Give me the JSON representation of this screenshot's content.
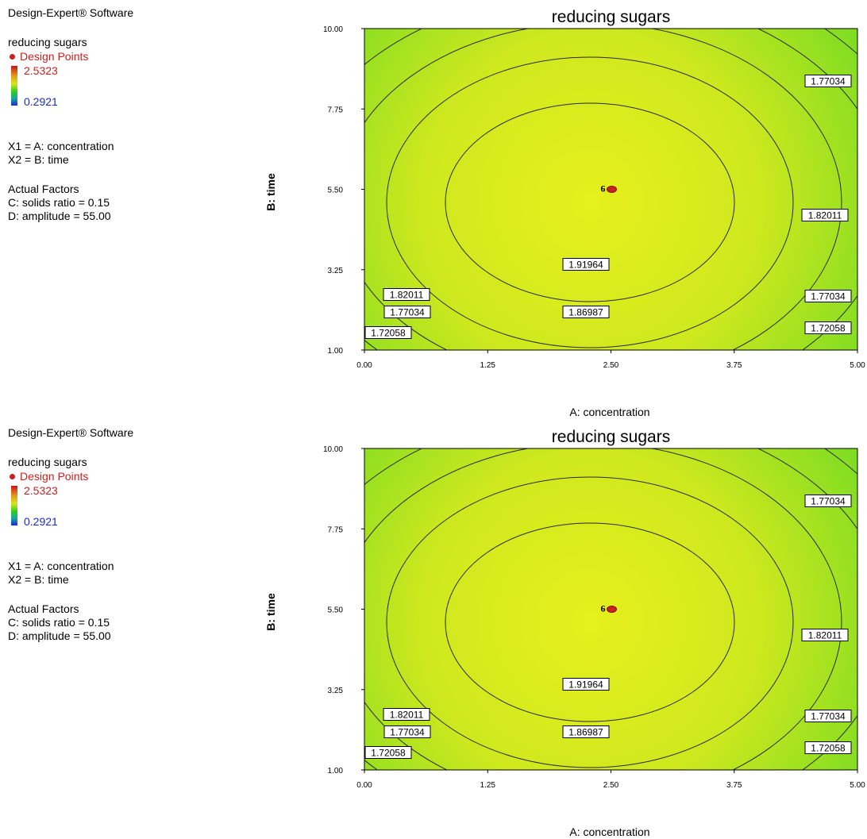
{
  "panels": [
    {
      "software": "Design-Expert® Software",
      "response": "reducing sugars",
      "design_points_label": "Design Points",
      "color_max": "2.5323",
      "color_min": "0.2921",
      "x1_label": "X1 = A: concentration",
      "x2_label": "X2 = B: time",
      "actual_factors_title": "Actual Factors",
      "factor_c": "C: solids ratio = 0.15",
      "factor_d": "D: amplitude = 55.00"
    },
    {
      "software": "Design-Expert® Software",
      "response": "reducing sugars",
      "design_points_label": "Design Points",
      "color_max": "2.5323",
      "color_min": "0.2921",
      "x1_label": "X1 = A: concentration",
      "x2_label": "X2 = B: time",
      "actual_factors_title": "Actual Factors",
      "factor_c": "C: solids ratio = 0.15",
      "factor_d": "D: amplitude = 55.00"
    }
  ],
  "chart_data": [
    {
      "type": "contour",
      "title": "reducing sugars",
      "xlabel": "A: concentration",
      "ylabel": "B: time",
      "xlim": [
        0,
        5
      ],
      "ylim": [
        1,
        10
      ],
      "x_ticks": [
        "0.00",
        "1.25",
        "2.50",
        "3.75",
        "5.00"
      ],
      "y_ticks": [
        "1.00",
        "3.25",
        "5.50",
        "7.75",
        "10.00"
      ],
      "contour_levels": [
        "1.72058",
        "1.77034",
        "1.82011",
        "1.86987",
        "1.91964"
      ],
      "design_point": {
        "x": 2.5,
        "y": 5.5,
        "count_label": "6"
      },
      "colors": {
        "center": "#e6f01c",
        "edge": "#5ed824",
        "contour": "#2a2a2a",
        "point": "#cc1f1f"
      }
    },
    {
      "type": "contour",
      "title": "reducing sugars",
      "xlabel": "A: concentration",
      "ylabel": "B: time",
      "xlim": [
        0,
        5
      ],
      "ylim": [
        1,
        10
      ],
      "x_ticks": [
        "0.00",
        "1.25",
        "2.50",
        "3.75",
        "5.00"
      ],
      "y_ticks": [
        "1.00",
        "3.25",
        "5.50",
        "7.75",
        "10.00"
      ],
      "contour_levels": [
        "1.72058",
        "1.77034",
        "1.82011",
        "1.86987",
        "1.91964"
      ],
      "design_point": {
        "x": 2.5,
        "y": 5.5,
        "count_label": "6"
      },
      "colors": {
        "center": "#e6f01c",
        "edge": "#5ed824",
        "contour": "#2a2a2a",
        "point": "#cc1f1f"
      }
    }
  ]
}
